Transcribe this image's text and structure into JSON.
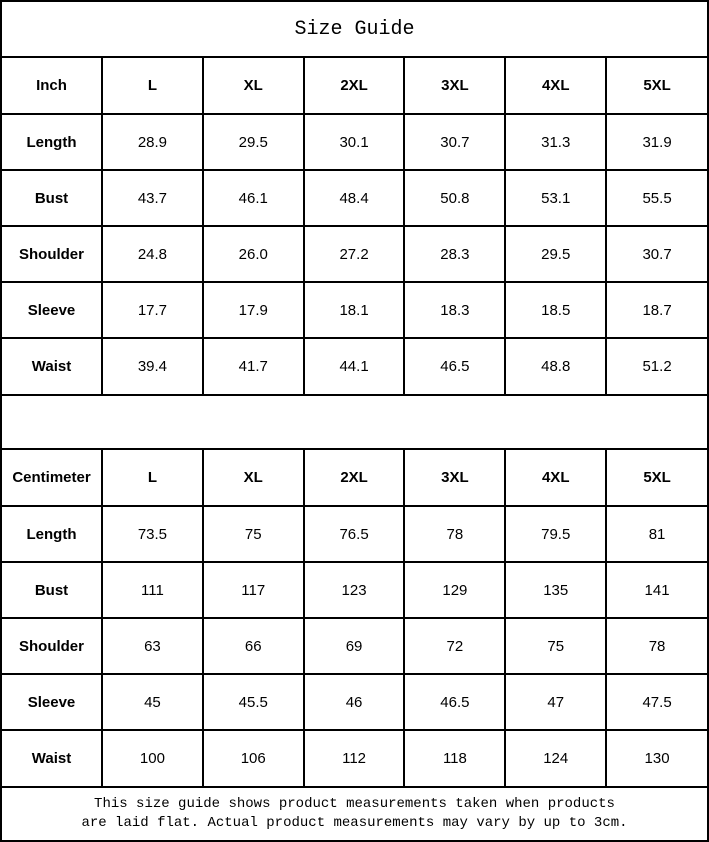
{
  "title": "Size Guide",
  "footer": {
    "line1": "This size guide shows product measurements taken when products",
    "line2": "are laid flat. Actual product measurements may vary by up to 3cm."
  },
  "colors": {
    "background": "#ffffff",
    "border": "#000000",
    "text": "#000000"
  },
  "chart_data": [
    {
      "type": "table",
      "unit": "Inch",
      "columns": [
        "Inch",
        "L",
        "XL",
        "2XL",
        "3XL",
        "4XL",
        "5XL"
      ],
      "rows": [
        {
          "label": "Length",
          "values": [
            "28.9",
            "29.5",
            "30.1",
            "30.7",
            "31.3",
            "31.9"
          ]
        },
        {
          "label": "Bust",
          "values": [
            "43.7",
            "46.1",
            "48.4",
            "50.8",
            "53.1",
            "55.5"
          ]
        },
        {
          "label": "Shoulder",
          "values": [
            "24.8",
            "26.0",
            "27.2",
            "28.3",
            "29.5",
            "30.7"
          ]
        },
        {
          "label": "Sleeve",
          "values": [
            "17.7",
            "17.9",
            "18.1",
            "18.3",
            "18.5",
            "18.7"
          ]
        },
        {
          "label": "Waist",
          "values": [
            "39.4",
            "41.7",
            "44.1",
            "46.5",
            "48.8",
            "51.2"
          ]
        }
      ]
    },
    {
      "type": "table",
      "unit": "Centimeter",
      "columns": [
        "Centimeter",
        "L",
        "XL",
        "2XL",
        "3XL",
        "4XL",
        "5XL"
      ],
      "rows": [
        {
          "label": "Length",
          "values": [
            "73.5",
            "75",
            "76.5",
            "78",
            "79.5",
            "81"
          ]
        },
        {
          "label": "Bust",
          "values": [
            "111",
            "117",
            "123",
            "129",
            "135",
            "141"
          ]
        },
        {
          "label": "Shoulder",
          "values": [
            "63",
            "66",
            "69",
            "72",
            "75",
            "78"
          ]
        },
        {
          "label": "Sleeve",
          "values": [
            "45",
            "45.5",
            "46",
            "46.5",
            "47",
            "47.5"
          ]
        },
        {
          "label": "Waist",
          "values": [
            "100",
            "106",
            "112",
            "118",
            "124",
            "130"
          ]
        }
      ]
    }
  ]
}
